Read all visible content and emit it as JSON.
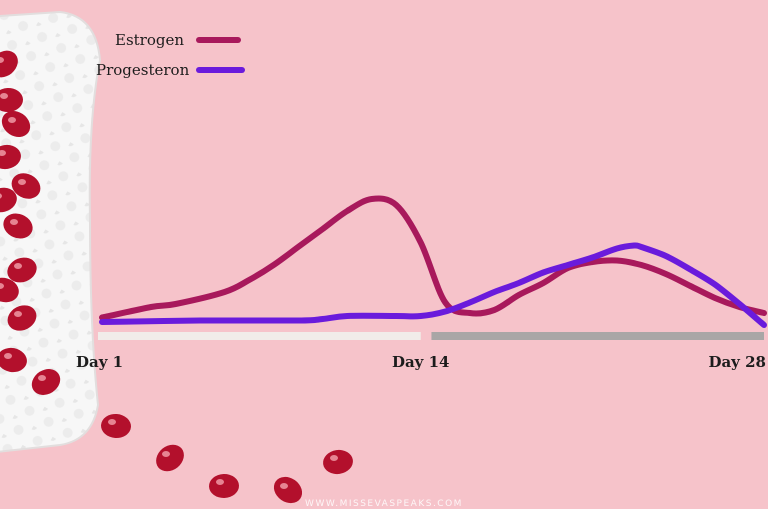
{
  "watermark": "WWW.MISSEVASPEAKS.COM",
  "chart_data": {
    "type": "line",
    "title": "",
    "xlabel": "",
    "ylabel": "",
    "x_tick_labels": [
      {
        "day": 1,
        "label": "Day 1"
      },
      {
        "day": 14,
        "label": "Day 14"
      },
      {
        "day": 28,
        "label": "Day 28"
      }
    ],
    "xlim": [
      1,
      28
    ],
    "ylim": [
      0,
      100
    ],
    "grid": false,
    "legend": "top-left",
    "phases": [
      {
        "from": 1,
        "to": 14,
        "color": "#f1ece9"
      },
      {
        "from": 14.6,
        "to": 28,
        "color": "#a9a6a6"
      }
    ],
    "series": [
      {
        "name": "Estrogen",
        "color": "#a8195c",
        "points": [
          [
            1,
            5
          ],
          [
            3,
            12
          ],
          [
            4,
            14
          ],
          [
            6,
            22
          ],
          [
            7,
            30
          ],
          [
            8,
            40
          ],
          [
            9,
            52
          ],
          [
            10,
            64
          ],
          [
            11,
            76
          ],
          [
            12,
            84
          ],
          [
            13,
            80
          ],
          [
            14,
            55
          ],
          [
            15,
            15
          ],
          [
            16,
            8
          ],
          [
            17,
            10
          ],
          [
            18,
            20
          ],
          [
            19,
            28
          ],
          [
            20,
            38
          ],
          [
            21,
            42
          ],
          [
            22,
            43
          ],
          [
            23,
            40
          ],
          [
            24,
            34
          ],
          [
            25,
            26
          ],
          [
            26,
            18
          ],
          [
            27,
            12
          ],
          [
            28,
            8
          ]
        ]
      },
      {
        "name": "Progesteron",
        "color": "#6a1bdc",
        "points": [
          [
            1,
            2
          ],
          [
            5,
            3
          ],
          [
            9,
            3
          ],
          [
            10,
            4
          ],
          [
            11,
            6
          ],
          [
            13,
            6
          ],
          [
            14,
            6
          ],
          [
            15,
            9
          ],
          [
            16,
            15
          ],
          [
            17,
            22
          ],
          [
            18,
            28
          ],
          [
            19,
            35
          ],
          [
            20,
            40
          ],
          [
            21,
            45
          ],
          [
            22,
            51
          ],
          [
            22.7,
            53
          ],
          [
            23,
            52
          ],
          [
            24,
            46
          ],
          [
            25,
            37
          ],
          [
            26,
            27
          ],
          [
            27,
            14
          ],
          [
            28,
            0
          ]
        ]
      }
    ]
  }
}
